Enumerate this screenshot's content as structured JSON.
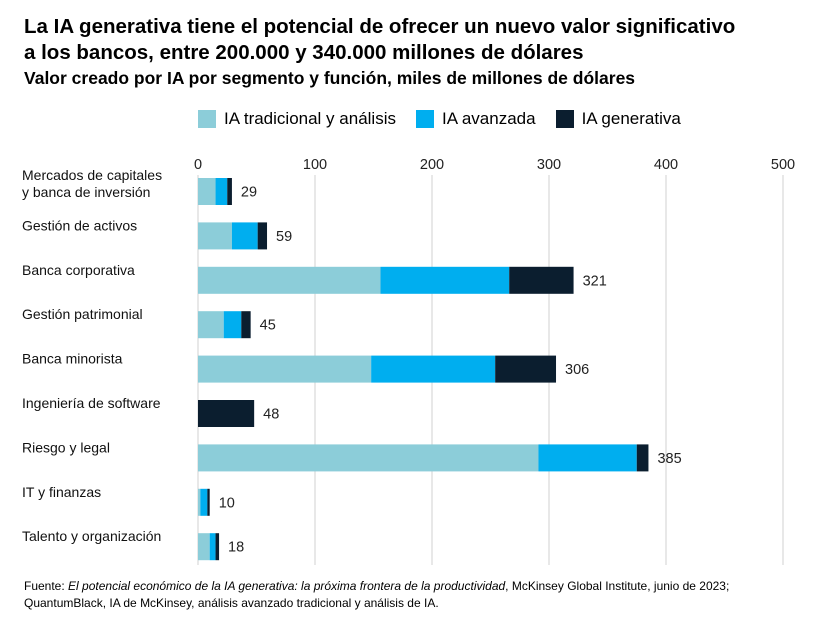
{
  "chart_data": {
    "type": "bar",
    "orientation": "horizontal",
    "stacked": true,
    "title": "La IA generativa tiene el potencial de ofrecer un nuevo valor significativo a los bancos, entre 200.000 y 340.000 millones de dólares",
    "title_line1": "La IA generativa tiene el potencial de ofrecer un nuevo valor significativo",
    "title_line2": "a los bancos, entre 200.000 y 340.000 millones de dólares",
    "subtitle": "Valor creado por IA por segmento y función, miles de millones de dólares",
    "xlim": [
      0,
      500
    ],
    "x_ticks": [
      0,
      100,
      200,
      300,
      400,
      500
    ],
    "x_tick_labels": [
      "0",
      "100",
      "200",
      "300",
      "400",
      "500"
    ],
    "grid": true,
    "legend_position": "top",
    "categories": [
      "Mercados de capitales y banca de inversión",
      "Gestión de activos",
      "Banca corporativa",
      "Gestión patrimonial",
      "Banca minorista",
      "Ingeniería de software",
      "Riesgo y legal",
      "IT y finanzas",
      "Talento y organización"
    ],
    "category_lines": [
      [
        "Mercados de capitales",
        "y banca de inversión"
      ],
      [
        "Gestión de activos"
      ],
      [
        "Banca corporativa"
      ],
      [
        "Gestión patrimonial"
      ],
      [
        "Banca minorista"
      ],
      [
        "Ingeniería de software"
      ],
      [
        "Riesgo y legal"
      ],
      [
        "IT y finanzas"
      ],
      [
        "Talento y organización"
      ]
    ],
    "series": [
      {
        "name": "IA tradicional y análisis",
        "color": "#8ccdd9",
        "values": [
          15,
          29,
          156,
          22,
          148,
          0,
          291,
          2,
          10
        ]
      },
      {
        "name": "IA avanzada",
        "color": "#00aeef",
        "values": [
          10,
          22,
          110,
          15,
          106,
          0,
          84,
          6,
          5
        ]
      },
      {
        "name": "IA generativa",
        "color": "#0b1e2f",
        "values": [
          4,
          8,
          55,
          8,
          52,
          48,
          10,
          2,
          3
        ]
      }
    ],
    "totals": [
      29,
      59,
      321,
      45,
      306,
      48,
      385,
      10,
      18
    ],
    "total_labels": [
      "29",
      "59",
      "321",
      "45",
      "306",
      "48",
      "385",
      "10",
      "18"
    ]
  },
  "source": {
    "prefix": "Fuente: ",
    "italic": "El potencial económico de la IA generativa: la próxima frontera de la productividad",
    "line1_rest": ", McKinsey Global Institute, junio de 2023;",
    "line2": "QuantumBlack, IA de McKinsey, análisis avanzado tradicional y análisis de IA."
  }
}
